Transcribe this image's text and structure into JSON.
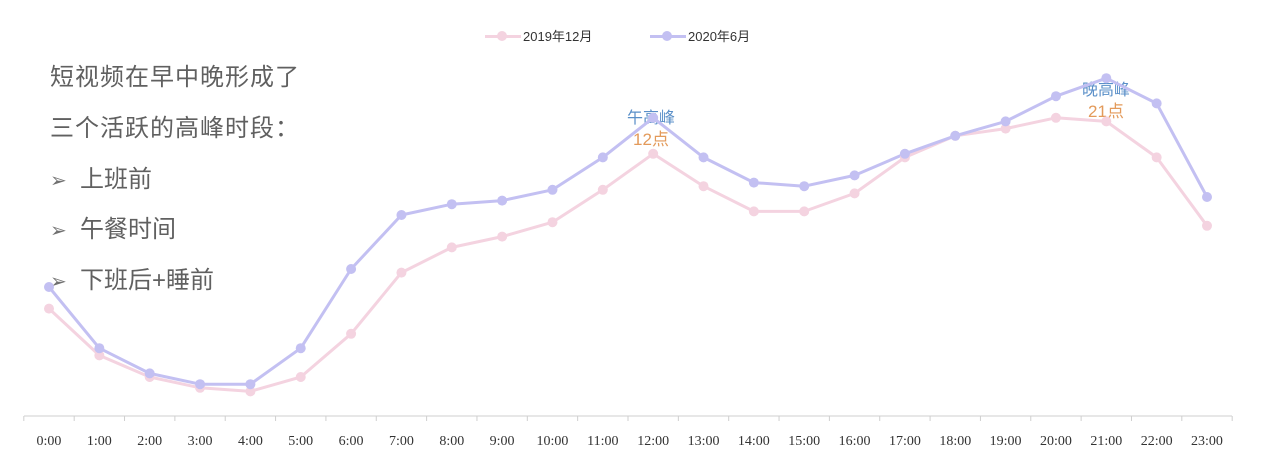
{
  "intro": {
    "line1": "短视频在早中晚形成了",
    "line2": "三个活跃的高峰时段：",
    "bullet_mark": "➢",
    "bullets": [
      "上班前",
      "午餐时间",
      "下班后+睡前"
    ]
  },
  "annotations": [
    {
      "name": "午高峰",
      "hour": "12点",
      "x": "12:00"
    },
    {
      "name": "晚高峰",
      "hour": "21点",
      "x": "21:00"
    }
  ],
  "colors": {
    "series_2019": "#f4d3e0",
    "series_2020": "#c3c0f2",
    "axis": "#cfcfcf",
    "tick_text": "#333333"
  },
  "chart_data": {
    "type": "line",
    "categories": [
      "0:00",
      "1:00",
      "2:00",
      "3:00",
      "4:00",
      "5:00",
      "6:00",
      "7:00",
      "8:00",
      "9:00",
      "10:00",
      "11:00",
      "12:00",
      "13:00",
      "14:00",
      "15:00",
      "16:00",
      "17:00",
      "18:00",
      "19:00",
      "20:00",
      "21:00",
      "22:00",
      "23:00"
    ],
    "series": [
      {
        "name": "2019年12月",
        "values": [
          29,
          16,
          10,
          7,
          6,
          10,
          22,
          39,
          46,
          49,
          53,
          62,
          72,
          63,
          56,
          56,
          61,
          71,
          77,
          79,
          82,
          81,
          71,
          52
        ]
      },
      {
        "name": "2020年6月",
        "values": [
          35,
          18,
          11,
          8,
          8,
          18,
          40,
          55,
          58,
          59,
          62,
          71,
          82,
          71,
          64,
          63,
          66,
          72,
          77,
          81,
          88,
          93,
          86,
          60
        ]
      }
    ],
    "ylim": [
      0,
      100
    ],
    "grid": false,
    "legend_position": "top-center",
    "xlabel": "",
    "ylabel": ""
  }
}
